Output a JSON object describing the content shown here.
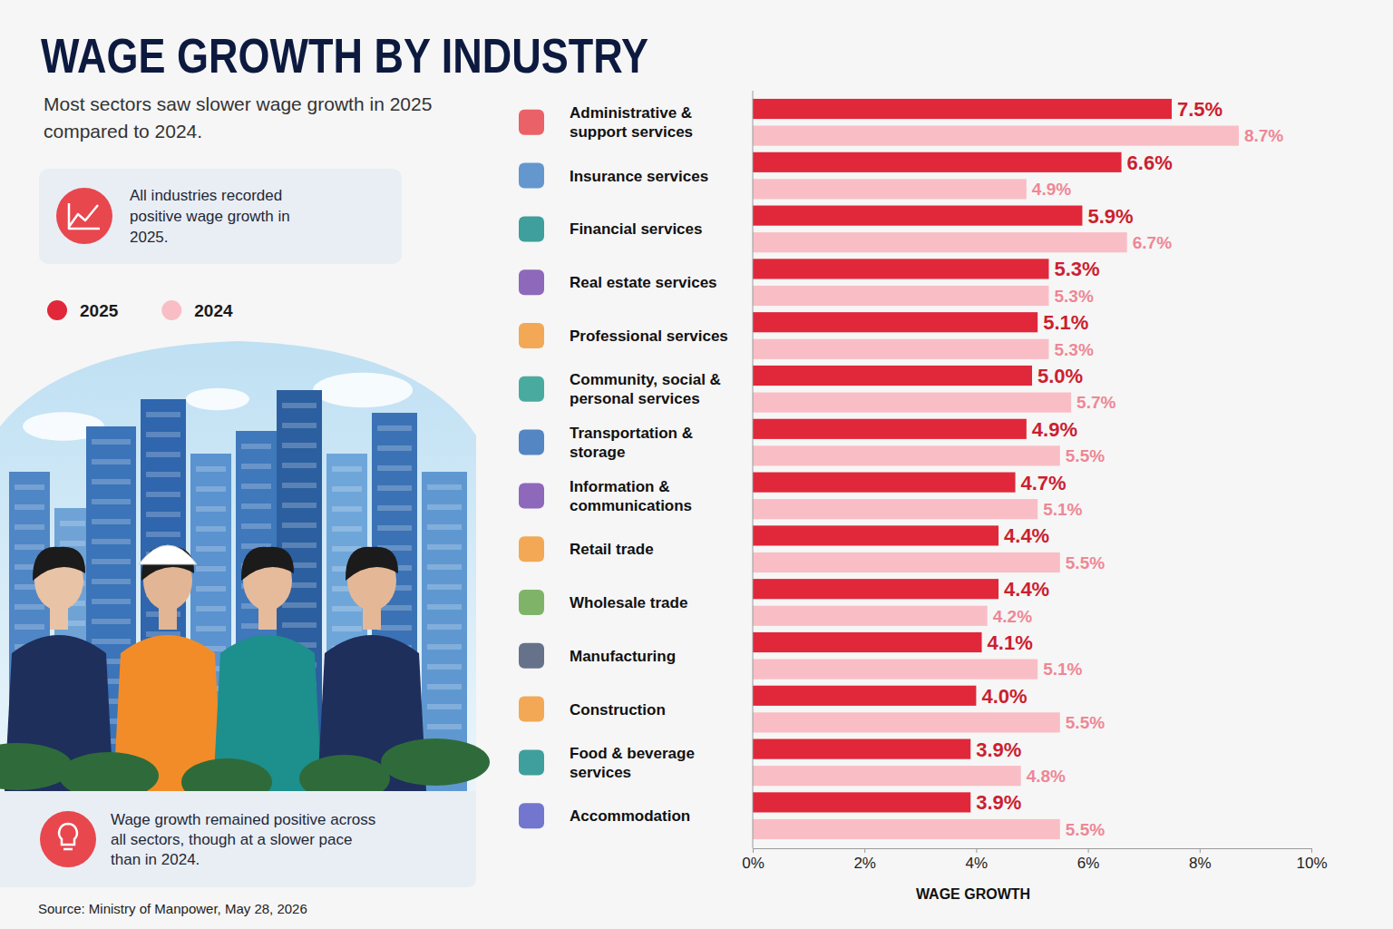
{
  "chart_data": {
    "type": "bar",
    "orientation": "horizontal",
    "title": "WAGE GROWTH BY INDUSTRY",
    "subtitle": "Most sectors saw slower wage growth in 2025 compared to 2024.",
    "annotations": [
      "All industries recorded positive wage growth in 2025.",
      "Wage growth remained positive across all sectors, though at a slower pace than in 2024."
    ],
    "source": "Source: Ministry of Manpower, May 28, 2026",
    "categories": [
      "Administrative & support services",
      "Insurance services",
      "Financial services",
      "Real estate services",
      "Professional services",
      "Community, social & personal services",
      "Transportation & storage",
      "Information & communications",
      "Retail trade",
      "Wholesale trade",
      "Manufacturing",
      "Construction",
      "Food & beverage services",
      "Accommodation"
    ],
    "series": [
      {
        "name": "2025",
        "color": "#e0283a",
        "values": [
          7.5,
          6.6,
          5.9,
          5.3,
          5.1,
          5.0,
          4.9,
          4.7,
          4.4,
          4.4,
          4.1,
          4.0,
          3.9,
          3.9
        ],
        "value_labels": [
          "7.5%",
          "6.6%",
          "5.9%",
          "5.3%",
          "5.1%",
          "5.0%",
          "4.9%",
          "4.7%",
          "4.4%",
          "4.4%",
          "4.1%",
          "4.0%",
          "3.9%",
          "3.9%"
        ]
      },
      {
        "name": "2024",
        "color": "#f9bec5",
        "values": [
          8.7,
          4.9,
          6.7,
          5.3,
          5.3,
          5.7,
          5.5,
          5.1,
          5.5,
          4.2,
          5.1,
          5.5,
          4.8,
          5.5
        ],
        "value_labels": [
          "8.7%",
          "4.9%",
          "6.7%",
          "5.3%",
          "5.3%",
          "5.7%",
          "5.5%",
          "5.1%",
          "5.5%",
          "4.2%",
          "5.1%",
          "5.5%",
          "4.8%",
          "5.5%"
        ]
      }
    ],
    "xlabel": "WAGE GROWTH",
    "xlim": [
      0,
      10
    ],
    "xticks": [
      {
        "value": 0,
        "label": "0%"
      },
      {
        "value": 2,
        "label": "2%"
      },
      {
        "value": 4,
        "label": "4%"
      },
      {
        "value": 6,
        "label": "6%"
      },
      {
        "value": 8,
        "label": "8%"
      },
      {
        "value": 10,
        "label": "10%"
      }
    ],
    "grid": false,
    "legend": "upper-left",
    "data_labels": true
  }
}
